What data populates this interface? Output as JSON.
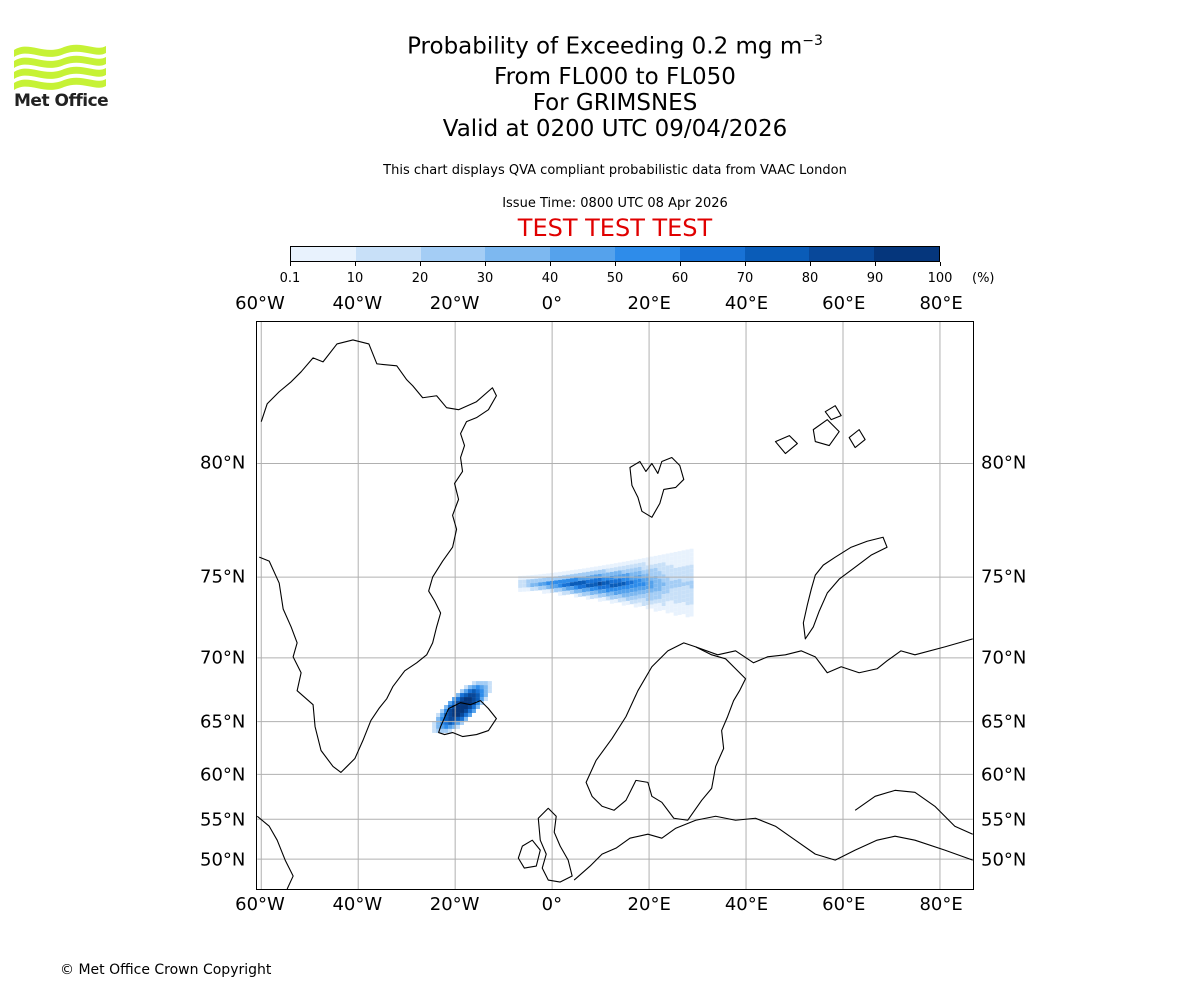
{
  "logo": {
    "text": "Met Office",
    "color": "#c6f236",
    "icon": "met-office-wave-logo"
  },
  "title": {
    "line1": "Probability of Exceeding 0.2 mg m",
    "line1_superscript": "−3",
    "line2": "From FL000 to FL050",
    "line3": "For GRIMSNES",
    "line4": "Valid at 0200 UTC 09/04/2026"
  },
  "description": "This chart displays QVA compliant probabilistic data from VAAC London",
  "issue_time": "Issue Time: 0800 UTC 08 Apr 2026",
  "test_banner": {
    "text": "TEST TEST TEST",
    "color": "#e00000"
  },
  "colorbar": {
    "ticks": [
      "0.1",
      "10",
      "20",
      "30",
      "40",
      "50",
      "60",
      "70",
      "80",
      "90",
      "100"
    ],
    "unit": "(%)",
    "colors": [
      "#e8f2fd",
      "#c8e0f8",
      "#a4cdf5",
      "#7db8f0",
      "#55a2ec",
      "#2e8cea",
      "#1872d6",
      "#0a5cb8",
      "#08489a",
      "#05367c",
      "#032a5e"
    ]
  },
  "map": {
    "longitude_labels": [
      "60°W",
      "40°W",
      "20°W",
      "0°",
      "20°E",
      "40°E",
      "60°E",
      "80°E"
    ],
    "latitude_labels": [
      "80°N",
      "75°N",
      "70°N",
      "65°N",
      "60°N",
      "55°N",
      "50°N"
    ],
    "gridlines": true,
    "regions": [
      "Greenland",
      "Iceland",
      "Svalbard",
      "Scandinavia",
      "British Isles",
      "Novaya Zemlya",
      "Franz Josef Land"
    ]
  },
  "ash_regions": [
    {
      "name": "Iceland plume",
      "lon_range": [
        -25,
        -14
      ],
      "lat_range": [
        63.5,
        69
      ],
      "probability_peak": "90-100%"
    },
    {
      "name": "Norwegian Sea band",
      "lon_range": [
        -5,
        30
      ],
      "lat_range": [
        73,
        76.5
      ],
      "probability_peak": "70-80%"
    }
  ],
  "footer": "© Met Office Crown Copyright"
}
